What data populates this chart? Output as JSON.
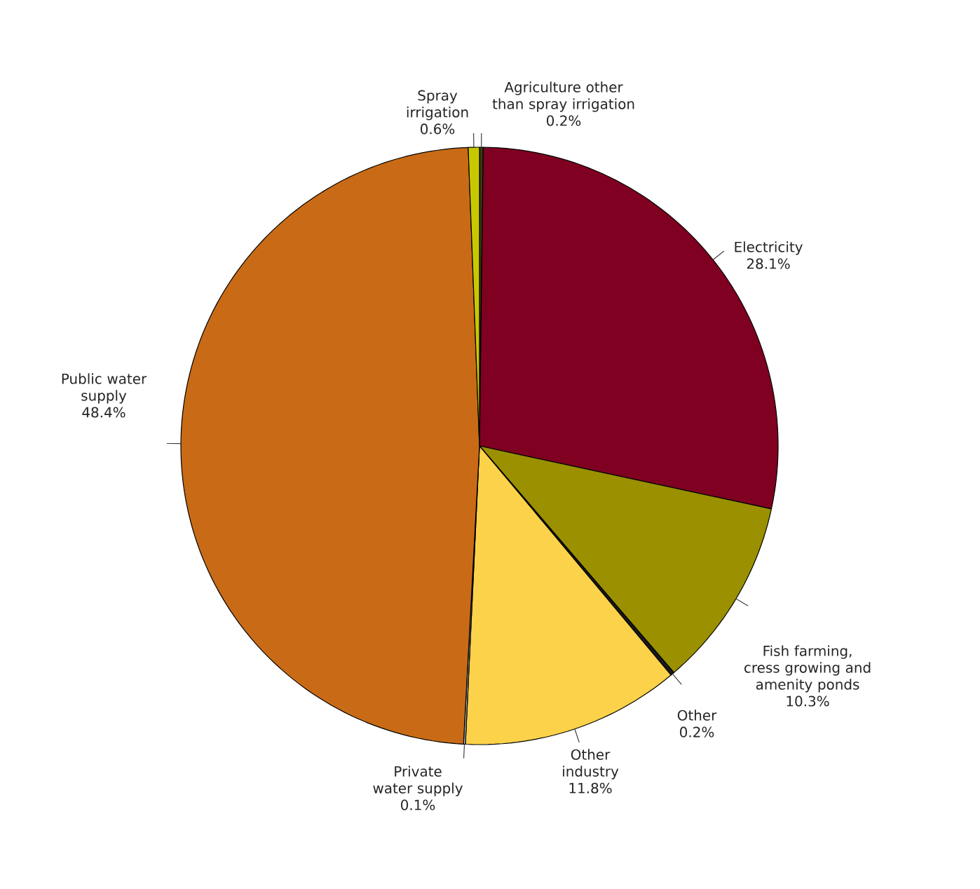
{
  "chart_data": {
    "type": "pie",
    "categories": [
      "Agriculture other than spray irrigation",
      "Electricity",
      "Fish farming, cress growing and amenity ponds",
      "Other",
      "Other industry",
      "Private water supply",
      "Public water supply",
      "Spray irrigation"
    ],
    "values": [
      0.2,
      28.1,
      10.3,
      0.2,
      11.8,
      0.1,
      48.4,
      0.6
    ],
    "value_labels": [
      "0.2%",
      "28.1%",
      "10.3%",
      "0.2%",
      "11.8%",
      "0.1%",
      "48.4%",
      "0.6%"
    ],
    "colors": [
      "#3a3a14",
      "#7f0020",
      "#9a9000",
      "#1a1a1a",
      "#fcd24a",
      "#b8c4d0",
      "#c96b16",
      "#c8c800"
    ]
  }
}
